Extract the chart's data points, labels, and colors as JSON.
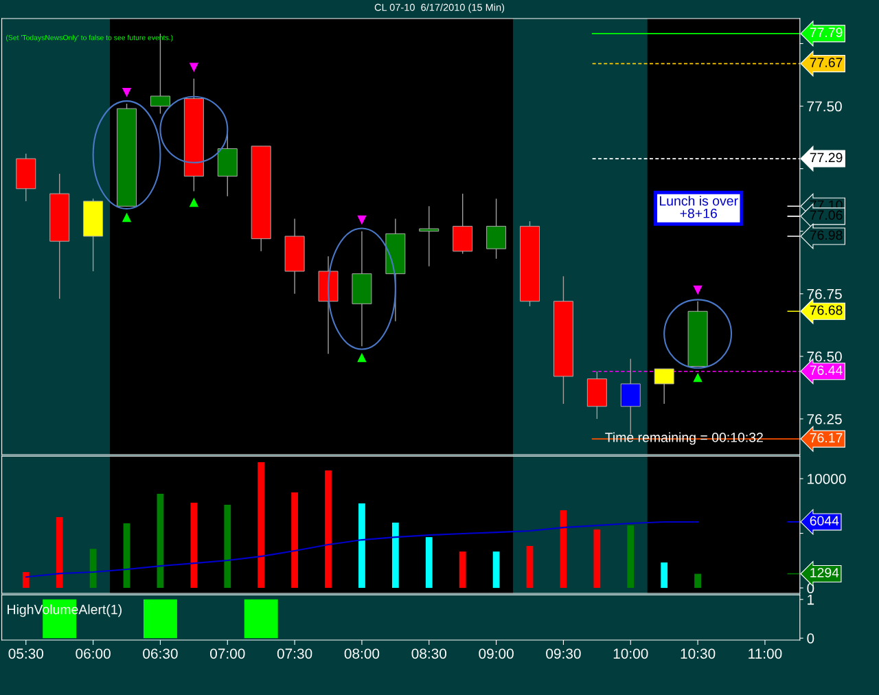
{
  "chart_data": [
    {
      "type": "candlestick",
      "title": "CL 07-10  6/17/2010 (15 Min)",
      "x": [
        5.5,
        5.75,
        6.0,
        6.25,
        6.5,
        6.75,
        7.0,
        7.25,
        7.5,
        7.75,
        8.0,
        8.25,
        8.5,
        8.75,
        9.0,
        9.25,
        9.5,
        9.75,
        10.0,
        10.25,
        10.5
      ],
      "ohlc": [
        [
          77.29,
          77.31,
          77.12,
          77.17
        ],
        [
          77.15,
          77.23,
          76.73,
          76.96
        ],
        [
          76.98,
          77.13,
          76.84,
          77.12
        ],
        [
          77.1,
          77.51,
          77.1,
          77.49
        ],
        [
          77.5,
          77.79,
          77.47,
          77.54
        ],
        [
          77.53,
          77.61,
          77.16,
          77.22
        ],
        [
          77.22,
          77.39,
          77.14,
          77.33
        ],
        [
          77.34,
          77.34,
          76.92,
          76.97
        ],
        [
          76.98,
          77.05,
          76.75,
          76.84
        ],
        [
          76.84,
          76.9,
          76.51,
          76.72
        ],
        [
          76.71,
          77.0,
          76.54,
          76.83
        ],
        [
          76.83,
          77.05,
          76.64,
          76.99
        ],
        [
          77.0,
          77.1,
          76.86,
          77.01
        ],
        [
          77.02,
          77.15,
          76.91,
          76.92
        ],
        [
          76.93,
          77.13,
          76.89,
          77.02
        ],
        [
          77.02,
          77.04,
          76.7,
          76.72
        ],
        [
          76.72,
          76.82,
          76.31,
          76.42
        ],
        [
          76.41,
          76.44,
          76.25,
          76.3
        ],
        [
          76.3,
          76.49,
          76.19,
          76.39
        ],
        [
          76.39,
          76.45,
          76.31,
          76.45
        ],
        [
          76.46,
          76.72,
          76.46,
          76.68
        ]
      ],
      "colors": [
        "#ff0000",
        "#ff0000",
        "#ffff00",
        "#008000",
        "#008000",
        "#ff0000",
        "#008000",
        "#ff0000",
        "#ff0000",
        "#ff0000",
        "#008000",
        "#008000",
        "#008000",
        "#ff0000",
        "#008000",
        "#ff0000",
        "#ff0000",
        "#ff0000",
        "#0000ff",
        "#ffff00",
        "#008000"
      ],
      "xlim": [
        5.32,
        11.26
      ],
      "ylim": [
        76.107,
        77.85
      ],
      "yticks": [
        {
          "value": 76.25,
          "label": "76.25"
        },
        {
          "value": 76.5,
          "label": "76.50"
        },
        {
          "value": 76.75,
          "label": "76.75"
        },
        {
          "value": 77.0,
          "label": null
        },
        {
          "value": 77.25,
          "label": null
        },
        {
          "value": 77.5,
          "label": "77.50"
        },
        {
          "value": 77.75,
          "label": null
        }
      ],
      "tick_labels": "y",
      "bands": [
        {
          "axis": "x",
          "from": 6.125,
          "to": 9.125,
          "color": "#000000"
        },
        {
          "axis": "x",
          "from": 10.125,
          "to": 11.26,
          "color": "#000000"
        }
      ],
      "ref_lines": [
        {
          "axis": "y",
          "value": 77.79,
          "label": "77.79",
          "color": "#00ff00",
          "line_style": "solid"
        },
        {
          "axis": "y",
          "value": 77.67,
          "label": "77.67",
          "color": "#ffcc00",
          "line_style": "dashed"
        },
        {
          "axis": "y",
          "value": 77.29,
          "label": "77.29",
          "color": "#ffffff",
          "line_style": "dashed"
        },
        {
          "axis": "y",
          "value": 77.1,
          "label": "77.10",
          "color": "#ffffff"
        },
        {
          "axis": "y",
          "value": 77.06,
          "label": "77.06",
          "color": "#ffffff"
        },
        {
          "axis": "y",
          "value": 76.98,
          "label": "76.98",
          "color": "#ffffff"
        },
        {
          "axis": "y",
          "value": 76.68,
          "label": "76.68",
          "color": "#ffff00"
        },
        {
          "axis": "y",
          "value": 76.44,
          "label": "76.44",
          "color": "#ff00ff",
          "line_style": "dashed"
        },
        {
          "axis": "y",
          "value": 76.17,
          "label": "76.17",
          "color": "#ff5000",
          "line_style": "solid"
        }
      ],
      "annotations": [
        "(Set 'TodaysNewsOnly' to false to see future events.)",
        "Lunch is over\n+8+16",
        "Time remaining = 00:10:32"
      ],
      "grid": false,
      "legend": false
    },
    {
      "type": "bar",
      "x": [
        5.5,
        5.75,
        6.0,
        6.25,
        6.5,
        6.75,
        7.0,
        7.25,
        7.5,
        7.75,
        8.0,
        8.25,
        8.5,
        8.75,
        9.0,
        9.25,
        9.5,
        9.75,
        10.0,
        10.25,
        10.5
      ],
      "series": [
        {
          "type": "bar",
          "values": [
            1450,
            6480,
            3580,
            5910,
            8620,
            7800,
            7610,
            11510,
            8740,
            10750,
            7740,
            5970,
            4650,
            3330,
            3330,
            3840,
            7110,
            5350,
            5720,
            2330,
            1294
          ],
          "colors": [
            "#ff0000",
            "#ff0000",
            "#008000",
            "#008000",
            "#008000",
            "#ff0000",
            "#008000",
            "#ff0000",
            "#ff0000",
            "#ff0000",
            "#00ffff",
            "#00ffff",
            "#00ffff",
            "#ff0000",
            "#00ffff",
            "#ff0000",
            "#ff0000",
            "#ff0000",
            "#008000",
            "#00ffff",
            "#008000"
          ]
        },
        {
          "type": "line",
          "color": "#0000cc",
          "values": [
            1000,
            1320,
            1450,
            1700,
            2010,
            2260,
            2520,
            2890,
            3400,
            3960,
            4400,
            4650,
            4840,
            4970,
            5090,
            5220,
            5530,
            5720,
            5910,
            6040,
            6044
          ]
        }
      ],
      "xlim": [
        5.32,
        11.26
      ],
      "ylim": [
        -500,
        12070
      ],
      "yticks": [
        0,
        {
          "value": 5000,
          "label": null
        },
        10000
      ],
      "tick_labels": "y",
      "bands": [
        {
          "axis": "x",
          "from": 6.125,
          "to": 9.125,
          "color": "#000000"
        },
        {
          "axis": "x",
          "from": 10.125,
          "to": 11.26,
          "color": "#000000"
        }
      ],
      "ref_lines": [
        {
          "axis": "y",
          "value": 6044,
          "label": "6044",
          "color": "#0000ff"
        },
        {
          "axis": "y",
          "value": 1294,
          "label": "1294",
          "color": "#008000"
        }
      ],
      "grid": false,
      "legend": false
    },
    {
      "type": "bar",
      "title": "HighVolumeAlert(1)",
      "x": [
        5.5,
        5.75,
        6.0,
        6.25,
        6.5,
        6.75,
        7.0,
        7.25,
        7.5,
        7.75,
        8.0,
        8.25,
        8.5,
        8.75,
        9.0,
        9.25,
        9.5,
        9.75,
        10.0,
        10.25,
        10.5
      ],
      "values": [
        0,
        1,
        0,
        0,
        1,
        0,
        0,
        1,
        0,
        0,
        0,
        0,
        0,
        0,
        0,
        0,
        0,
        0,
        0,
        0,
        0
      ],
      "color": "#00ff00",
      "xlim": [
        5.32,
        11.26
      ],
      "xticks": [
        {
          "value": 5.5,
          "label": "05:30"
        },
        {
          "value": 6.0,
          "label": "06:00"
        },
        {
          "value": 6.5,
          "label": "06:30"
        },
        {
          "value": 7.0,
          "label": "07:00"
        },
        {
          "value": 7.5,
          "label": "07:30"
        },
        {
          "value": 8.0,
          "label": "08:00"
        },
        {
          "value": 8.5,
          "label": "08:30"
        },
        {
          "value": 9.0,
          "label": "09:00"
        },
        {
          "value": 9.5,
          "label": "09:30"
        },
        {
          "value": 10.0,
          "label": "10:00"
        },
        {
          "value": 10.5,
          "label": "10:30"
        },
        {
          "value": 11.0,
          "label": "11:00"
        }
      ],
      "ylim": [
        -0.05,
        1.12
      ],
      "yticks": [
        0,
        1
      ],
      "grid": false,
      "legend": false
    }
  ]
}
